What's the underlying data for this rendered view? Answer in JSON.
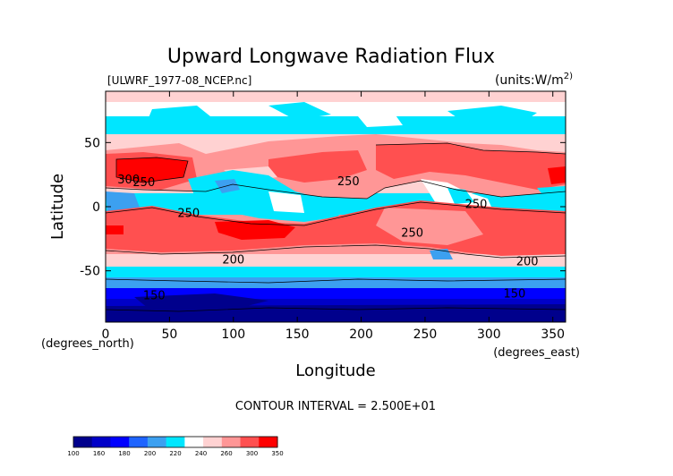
{
  "chart_data": {
    "type": "heatmap",
    "title": "Upward Longwave Radiation Flux",
    "file_label": "[ULWRF_1977-08_NCEP.nc]",
    "units_label": "(units:W/m^2)",
    "units_text": "(units:W/m",
    "units_sup": "2)",
    "xlabel": "Longitude",
    "ylabel": "Latitude",
    "x_unit_label": "(degrees_east)",
    "y_unit_label": "(degrees_north)",
    "xlim": [
      0,
      360
    ],
    "ylim": [
      -90,
      90
    ],
    "x_ticks": [
      0,
      50,
      100,
      150,
      200,
      250,
      300,
      350
    ],
    "y_ticks": [
      -50,
      0,
      50
    ],
    "contour_interval_text": "CONTOUR INTERVAL = 2.500E+01",
    "contour_labels": [
      {
        "text": "300",
        "lon": 18,
        "lat": 27
      },
      {
        "text": "250",
        "lon": 30,
        "lat": 24
      },
      {
        "text": "250",
        "lon": 65,
        "lat": -10
      },
      {
        "text": "250",
        "lon": 190,
        "lat": 25
      },
      {
        "text": "250",
        "lon": 290,
        "lat": 0
      },
      {
        "text": "250",
        "lon": 240,
        "lat": -32
      },
      {
        "text": "200",
        "lon": 100,
        "lat": -62
      },
      {
        "text": "200",
        "lon": 330,
        "lat": -64
      },
      {
        "text": "150",
        "lon": 38,
        "lat": -102
      },
      {
        "text": "150",
        "lon": 320,
        "lat": -100
      }
    ],
    "colorbar": {
      "ticks": [
        "100",
        "160",
        "180",
        "200",
        "220",
        "240",
        "260",
        "300",
        "350"
      ],
      "colors": [
        "#00008c",
        "#0000c8",
        "#0000ff",
        "#1e64ff",
        "#3ca0f0",
        "#00e6ff",
        "#ffffff",
        "#ffd2d2",
        "#ff9696",
        "#ff5050",
        "#ff0000"
      ]
    },
    "zonal_bands": [
      {
        "lat_range": [
          60,
          90
        ],
        "color": "#ffd2d2"
      },
      {
        "lat_range": [
          45,
          60
        ],
        "color": "#00e6ff"
      },
      {
        "lat_range": [
          10,
          45
        ],
        "color": "#ff9696"
      },
      {
        "lat_range": [
          -10,
          10
        ],
        "color": "#00e6ff"
      },
      {
        "lat_range": [
          -40,
          -10
        ],
        "color": "#ff5050"
      },
      {
        "lat_range": [
          -55,
          -40
        ],
        "color": "#00e6ff"
      },
      {
        "lat_range": [
          -65,
          -55
        ],
        "color": "#3ca0f0"
      },
      {
        "lat_range": [
          -90,
          -65
        ],
        "color": "#0000c8"
      }
    ]
  }
}
